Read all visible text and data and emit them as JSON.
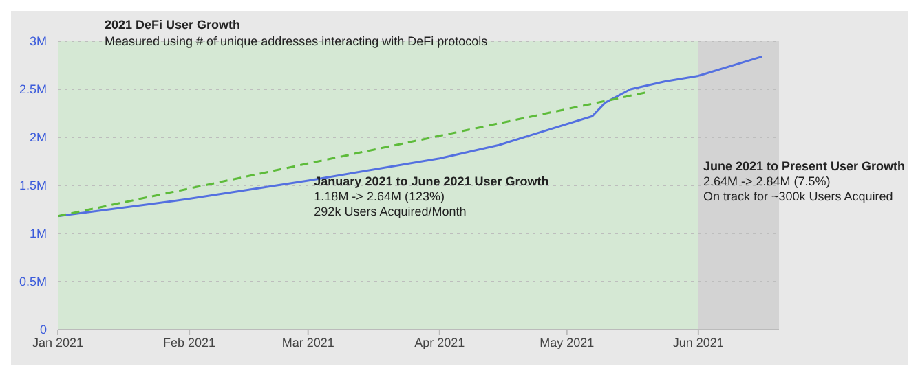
{
  "chart_data": {
    "type": "line",
    "title": "2021 DeFi User Growth",
    "subtitle": "Measured using # of unique addresses interacting with DeFi protocols",
    "series": [
      {
        "color": "#5470e0",
        "line_style": "solid",
        "x": [
          "2021-01-01",
          "2021-01-15",
          "2021-02-01",
          "2021-03-01",
          "2021-04-01",
          "2021-04-15",
          "2021-05-07",
          "2021-05-10",
          "2021-05-16",
          "2021-05-24",
          "2021-06-01",
          "2021-06-16"
        ],
        "values": [
          1.18,
          1.26,
          1.36,
          1.55,
          1.78,
          1.92,
          2.22,
          2.36,
          2.5,
          2.58,
          2.64,
          2.84
        ]
      },
      {
        "color": "#5dbb3a",
        "line_style": "dashed",
        "x": [
          "2021-01-01",
          "2021-05-20"
        ],
        "values": [
          1.18,
          2.47
        ]
      }
    ],
    "xlim": [
      "2021-01-01",
      "2021-06-20"
    ],
    "xticks": [
      {
        "value": "2021-01-01",
        "label": "Jan 2021"
      },
      {
        "value": "2021-02-01",
        "label": "Feb 2021"
      },
      {
        "value": "2021-03-01",
        "label": "Mar 2021"
      },
      {
        "value": "2021-04-01",
        "label": "Apr 2021"
      },
      {
        "value": "2021-05-01",
        "label": "May 2021"
      },
      {
        "value": "2021-06-01",
        "label": "Jun 2021"
      }
    ],
    "ylim": [
      0,
      3
    ],
    "yticks": [
      0,
      {
        "value": 0.5,
        "label": "0.5M"
      },
      {
        "value": 1,
        "label": "1M"
      },
      {
        "value": 1.5,
        "label": "1.5M"
      },
      {
        "value": 2,
        "label": "2M"
      },
      {
        "value": 2.5,
        "label": "2.5M"
      },
      {
        "value": 3,
        "label": "3M"
      }
    ],
    "bands": [
      {
        "axis": "x",
        "from": "2021-01-01",
        "to": "2021-06-01",
        "color": "#d5e8d4",
        "label": "January 2021 to June 2021 User Growth\n1.18M -> 2.64M (123%)\n292k Users Acquired/Month"
      },
      {
        "axis": "x",
        "from": "2021-06-01",
        "to": "2021-06-20",
        "color": "#d3d3d3",
        "label": "June 2021 to Present User Growth\n2.64M -> 2.84M (7.5%)\nOn track for ~300k Users Acquired"
      }
    ],
    "grid": "y",
    "marker": "none",
    "legend": false
  }
}
